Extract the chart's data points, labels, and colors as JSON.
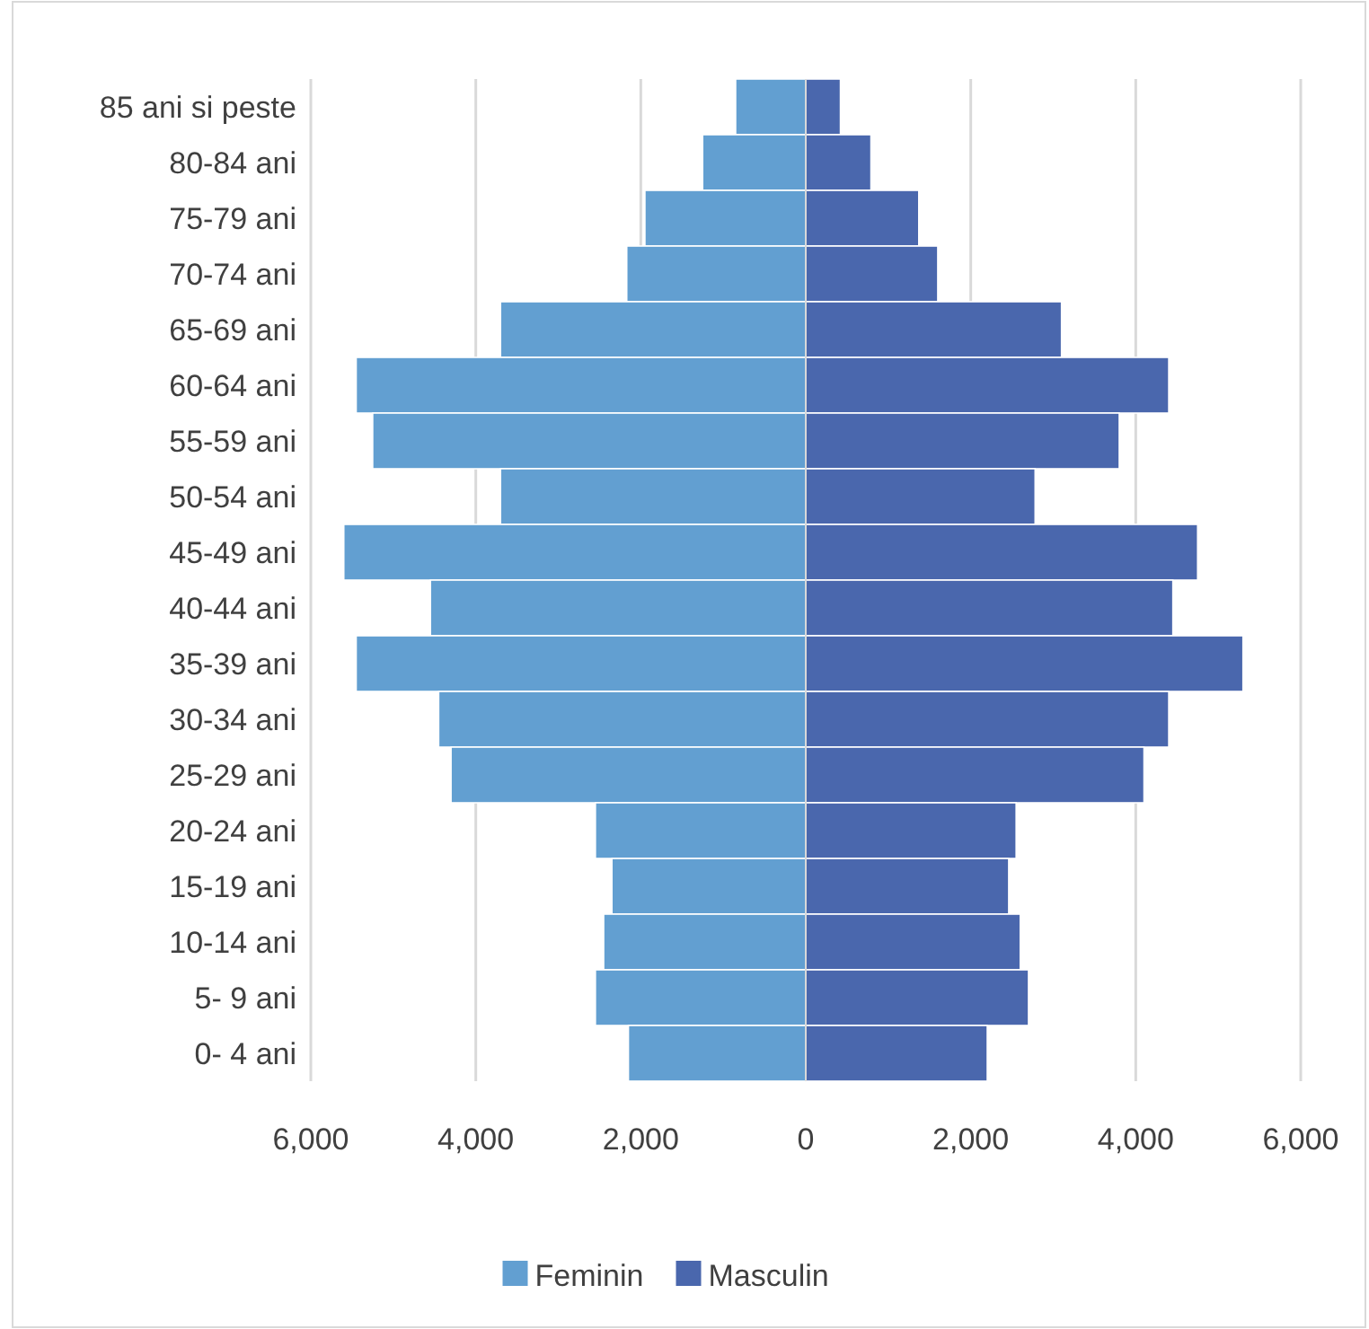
{
  "chart_data": {
    "type": "bar",
    "orientation": "horizontal",
    "stacked": true,
    "categories": [
      "85 ani si peste",
      "80-84 ani",
      "75-79 ani",
      "70-74 ani",
      "65-69 ani",
      "60-64 ani",
      "55-59 ani",
      "50-54 ani",
      "45-49 ani",
      "40-44 ani",
      "35-39 ani",
      "30-34 ani",
      "25-29 ani",
      "20-24 ani",
      "15-19 ani",
      "10-14 ani",
      "5- 9 ani",
      "0- 4 ani"
    ],
    "series": [
      {
        "name": "Feminin",
        "color": "#629fd1",
        "values": [
          -850,
          -1250,
          -1950,
          -2170,
          -3700,
          -5450,
          -5250,
          -3700,
          -5600,
          -4550,
          -5450,
          -4450,
          -4300,
          -2550,
          -2350,
          -2450,
          -2550,
          -2150
        ]
      },
      {
        "name": "Masculin",
        "color": "#4a67ad",
        "values": [
          420,
          790,
          1370,
          1600,
          3100,
          4400,
          3800,
          2780,
          4750,
          4450,
          5300,
          4400,
          4100,
          2550,
          2460,
          2600,
          2700,
          2200
        ]
      }
    ],
    "xlim": [
      -6000,
      6000
    ],
    "xticks": [
      {
        "value": -6000,
        "label": "6,000"
      },
      {
        "value": -4000,
        "label": "4,000"
      },
      {
        "value": -2000,
        "label": "2,000"
      },
      0,
      {
        "value": 2000,
        "label": "2,000"
      },
      {
        "value": 4000,
        "label": "4,000"
      },
      {
        "value": 6000,
        "label": "6,000"
      }
    ],
    "grid": "x",
    "legend": "bottom"
  }
}
